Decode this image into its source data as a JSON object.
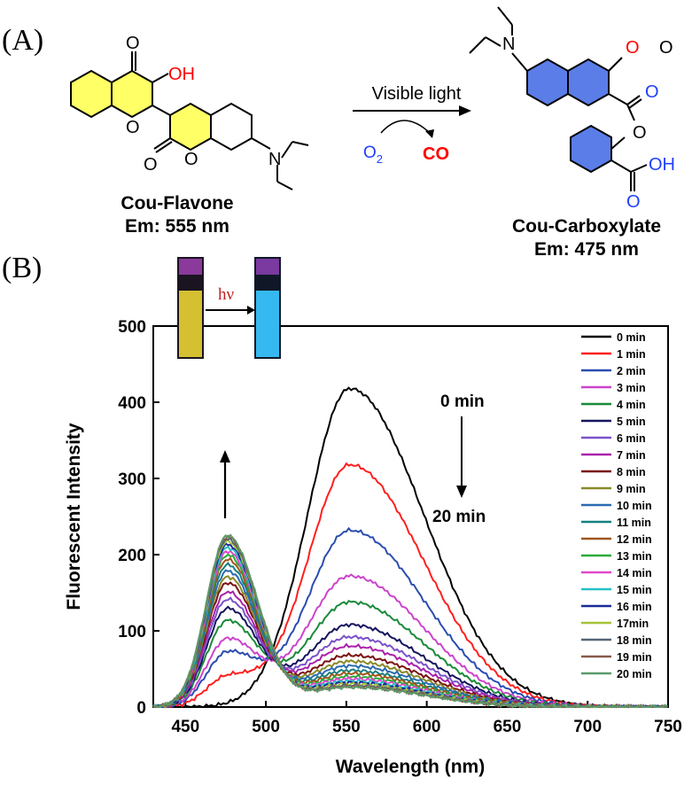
{
  "panels": {
    "a_label": "(A)",
    "b_label": "(B)"
  },
  "scheme": {
    "reactant_name": "Cou-Flavone",
    "reactant_em": "Em: 555 nm",
    "product_name": "Cou-Carboxylate",
    "product_em": "Em: 475 nm",
    "condition": "Visible light",
    "reagent": "O",
    "reagent_sub": "2",
    "byproduct": "CO",
    "atoms": {
      "o": "O",
      "oh": "OH",
      "n": "N"
    },
    "colors": {
      "reactant_ring": "#ffff66",
      "product_ring": "#5b7de8",
      "hetero_red": "#ff0000",
      "hetero_blue": "#1f3fff"
    }
  },
  "inset": {
    "label": "hν",
    "before_color": "#d4c030",
    "after_color": "#35b9f0",
    "arrow_icon": "up-arrow"
  },
  "annotations": {
    "start": "0 min",
    "end": "20 min",
    "arrow_icon": "down-arrow"
  },
  "chart_data": {
    "type": "line",
    "title": "",
    "xlabel": "Wavelength (nm)",
    "ylabel": "Fluorescent Intensity",
    "xlim": [
      430,
      750
    ],
    "ylim": [
      0,
      500
    ],
    "xticks": [
      450,
      500,
      550,
      600,
      650,
      700,
      750
    ],
    "yticks": [
      0,
      100,
      200,
      300,
      400,
      500
    ],
    "legend_position": "top-right",
    "isosbestic_point": {
      "x": 512,
      "y": 90
    },
    "series": [
      {
        "name": "0 min",
        "color": "#000000",
        "peak_short": 0,
        "peak_long": 418
      },
      {
        "name": "1 min",
        "color": "#ff1f1f",
        "peak_short": 38,
        "peak_long": 318
      },
      {
        "name": "2 min",
        "color": "#2a4db0",
        "peak_short": 70,
        "peak_long": 232
      },
      {
        "name": "3 min",
        "color": "#cc44cc",
        "peak_short": 88,
        "peak_long": 172
      },
      {
        "name": "4 min",
        "color": "#1a8a3a",
        "peak_short": 112,
        "peak_long": 138
      },
      {
        "name": "5 min",
        "color": "#14145e",
        "peak_short": 128,
        "peak_long": 108
      },
      {
        "name": "6 min",
        "color": "#7b52c9",
        "peak_short": 140,
        "peak_long": 92
      },
      {
        "name": "7 min",
        "color": "#aa22aa",
        "peak_short": 150,
        "peak_long": 80
      },
      {
        "name": "8 min",
        "color": "#7a1010",
        "peak_short": 162,
        "peak_long": 68
      },
      {
        "name": "9 min",
        "color": "#8a8a2a",
        "peak_short": 170,
        "peak_long": 60
      },
      {
        "name": "10 min",
        "color": "#2a6bb0",
        "peak_short": 178,
        "peak_long": 54
      },
      {
        "name": "11 min",
        "color": "#178080",
        "peak_short": 186,
        "peak_long": 48
      },
      {
        "name": "12 min",
        "color": "#a0561a",
        "peak_short": 193,
        "peak_long": 44
      },
      {
        "name": "13 min",
        "color": "#2aaa3a",
        "peak_short": 199,
        "peak_long": 40
      },
      {
        "name": "14 min",
        "color": "#e049c8",
        "peak_short": 204,
        "peak_long": 37
      },
      {
        "name": "15 min",
        "color": "#26c0c8",
        "peak_short": 209,
        "peak_long": 34
      },
      {
        "name": "16 min",
        "color": "#1a2a9a",
        "peak_short": 213,
        "peak_long": 32
      },
      {
        "name": "17min",
        "color": "#a6c43a",
        "peak_short": 217,
        "peak_long": 30
      },
      {
        "name": "18 min",
        "color": "#556677",
        "peak_short": 220,
        "peak_long": 28
      },
      {
        "name": "19 min",
        "color": "#8a5a4a",
        "peak_short": 223,
        "peak_long": 27
      },
      {
        "name": "20 min",
        "color": "#5a9a6a",
        "peak_short": 225,
        "peak_long": 26
      }
    ]
  }
}
